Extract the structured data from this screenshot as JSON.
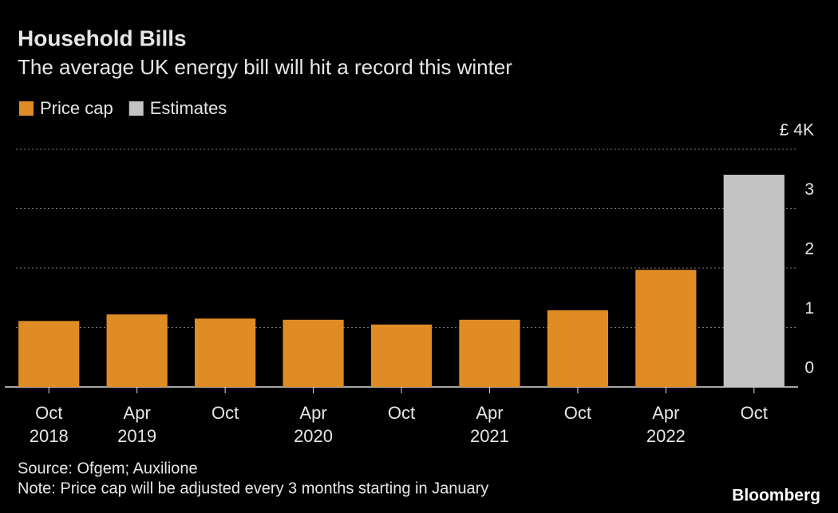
{
  "chart_data": {
    "type": "bar",
    "title": "Household Bills",
    "subtitle": "The average UK energy bill will hit a record this winter",
    "categories": [
      "Oct 2018",
      "Apr 2019",
      "Oct",
      "Apr 2020",
      "Oct",
      "Apr 2021",
      "Oct",
      "Apr 2022",
      "Oct"
    ],
    "series": [
      {
        "name": "Price cap",
        "color": "#e08c24",
        "values": [
          1.11,
          1.22,
          1.15,
          1.13,
          1.05,
          1.13,
          1.29,
          1.97,
          null
        ]
      },
      {
        "name": "Estimates",
        "color": "#c3c3c3",
        "values": [
          null,
          null,
          null,
          null,
          null,
          null,
          null,
          null,
          3.57
        ]
      }
    ],
    "ylim": [
      0,
      4
    ],
    "yticks": [
      0,
      1,
      2,
      3,
      {
        "value": 4,
        "label": "£ 4K"
      }
    ],
    "grid": true,
    "legend": "top-left",
    "source": "Source: Ofgem; Auxilione",
    "note": "Note: Price cap will be adjusted every 3 months starting in January",
    "logo": "Bloomberg"
  }
}
